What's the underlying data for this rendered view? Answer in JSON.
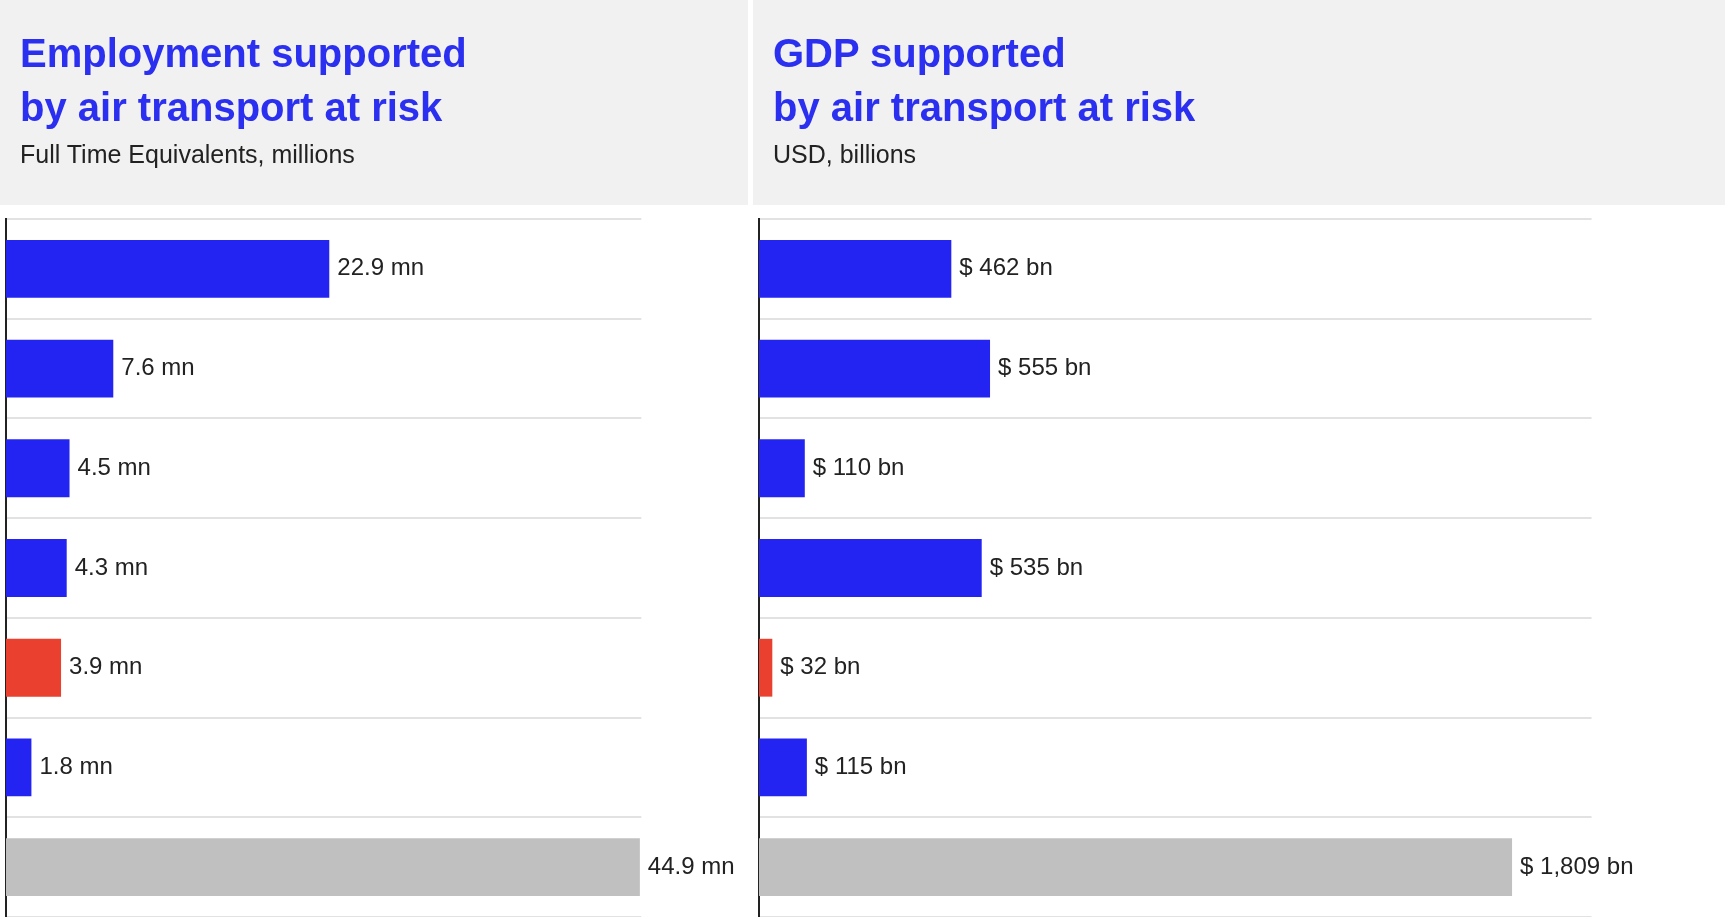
{
  "chart_data": [
    {
      "type": "bar",
      "orientation": "horizontal",
      "title": "Employment supported\nby air transport at risk",
      "subtitle": "Full Time Equivalents, millions",
      "categories": [
        null,
        null,
        null,
        null,
        null,
        null,
        null
      ],
      "values": [
        22.9,
        7.6,
        4.5,
        4.3,
        3.9,
        1.8,
        44.9
      ],
      "colors": [
        "#2424f2",
        "#2424f2",
        "#2424f2",
        "#2424f2",
        "#e9402f",
        "#2424f2",
        "#c0c0c0"
      ],
      "value_labels": [
        "22.9 mn",
        "7.6 mn",
        "4.5 mn",
        "4.3 mn",
        "3.9 mn",
        "1.8 mn",
        "44.9 mn"
      ],
      "grid": "y"
    },
    {
      "type": "bar",
      "orientation": "horizontal",
      "title": "GDP supported\nby air transport at risk",
      "subtitle": "USD, billions",
      "categories": [
        null,
        null,
        null,
        null,
        null,
        null,
        null
      ],
      "values": [
        462,
        555,
        110,
        535,
        32,
        115,
        1809
      ],
      "colors": [
        "#2424f2",
        "#2424f2",
        "#2424f2",
        "#2424f2",
        "#e9402f",
        "#2424f2",
        "#c0c0c0"
      ],
      "value_labels": [
        "$ 462 bn",
        "$ 555 bn",
        "$ 110 bn",
        "$ 535 bn",
        "$ 32 bn",
        "$ 115 bn",
        "$ 1,809 bn"
      ],
      "grid": "y"
    }
  ]
}
